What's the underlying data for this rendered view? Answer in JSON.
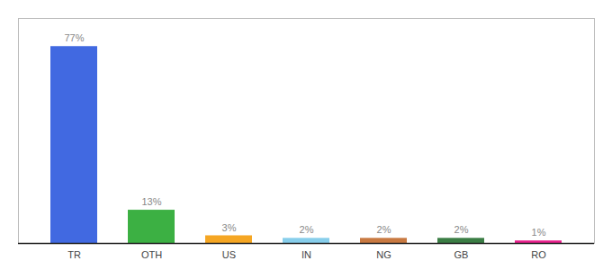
{
  "chart_data": {
    "type": "bar",
    "categories": [
      "TR",
      "OTH",
      "US",
      "IN",
      "NG",
      "GB",
      "RO"
    ],
    "values": [
      77,
      13,
      3,
      2,
      2,
      2,
      1
    ],
    "value_labels": [
      "77%",
      "13%",
      "3%",
      "2%",
      "2%",
      "2%",
      "1%"
    ],
    "colors": [
      "#4169e1",
      "#3cb043",
      "#f5a623",
      "#87ceeb",
      "#c87941",
      "#3a7d44",
      "#e91e8c"
    ],
    "data_labels": true,
    "ylim": [
      0,
      88
    ],
    "tick_labels": "x",
    "grid": false
  }
}
